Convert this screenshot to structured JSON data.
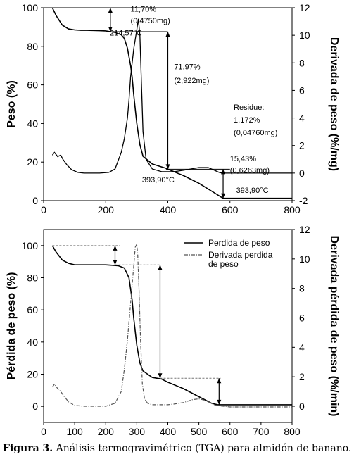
{
  "chart_data": [
    {
      "type": "line",
      "title": "",
      "ylabel": "Peso (%)",
      "y2label": "Derivada de peso (%/mg)",
      "xlim": [
        0,
        800
      ],
      "ylim": [
        0,
        100
      ],
      "y2lim": [
        -2,
        12
      ],
      "xticks": [
        "0",
        "200",
        "400",
        "600",
        "800"
      ],
      "yticks": [
        "0",
        "20",
        "40",
        "60",
        "80",
        "100"
      ],
      "y2ticks": [
        "-2",
        "0",
        "2",
        "4",
        "6",
        "8",
        "10",
        "12"
      ],
      "series": [
        {
          "axis": "left",
          "x": [
            28,
            40,
            60,
            80,
            100,
            120,
            140,
            160,
            180,
            200,
            215,
            230,
            250,
            260,
            270,
            280,
            285,
            290,
            300,
            310,
            320,
            350,
            380,
            393.9,
            400,
            450,
            500,
            550,
            575,
            580,
            600,
            700,
            800
          ],
          "y": [
            100,
            96,
            91,
            89,
            88.5,
            88.3,
            88.3,
            88.2,
            88.1,
            88.0,
            87.6,
            87.2,
            86,
            84,
            79,
            70,
            64,
            55,
            40,
            29,
            23,
            19,
            17.5,
            16.8,
            16.3,
            13,
            9,
            4,
            1.5,
            1.2,
            1.2,
            1.2,
            1.2
          ]
        },
        {
          "axis": "right",
          "x": [
            28,
            35,
            45,
            55,
            62,
            75,
            90,
            110,
            130,
            150,
            180,
            210,
            230,
            250,
            260,
            270,
            275,
            280,
            290,
            300,
            305,
            310,
            315,
            320,
            330,
            350,
            380,
            394,
            400,
            420,
            450,
            500,
            530,
            550,
            565,
            575,
            580,
            600,
            700,
            800
          ],
          "y": [
            1.3,
            1.5,
            1.2,
            1.3,
            1.0,
            0.6,
            0.25,
            0.05,
            0.0,
            0.0,
            0.0,
            0.05,
            0.3,
            1.5,
            2.5,
            4.0,
            5.3,
            7.0,
            9.0,
            10.4,
            11.2,
            10.0,
            6.5,
            3.0,
            1.0,
            0.3,
            0.1,
            0.1,
            0.1,
            0.1,
            0.2,
            0.4,
            0.4,
            0.2,
            0.05,
            0.0,
            0.0,
            0.0,
            0.0,
            0.0
          ]
        }
      ],
      "annotations": [
        {
          "text": "11,70%",
          "x": 280,
          "y": 98
        },
        {
          "text": "(0,4750mg)",
          "x": 280,
          "y": 92
        },
        {
          "text": "214,57°C",
          "x": 213,
          "y": 85.5
        },
        {
          "text": "71,97%",
          "x": 420,
          "y": 68
        },
        {
          "text": "(2,922mg)",
          "x": 420,
          "y": 61
        },
        {
          "text": "Residue:",
          "x": 612,
          "y": 47
        },
        {
          "text": "1,172%",
          "x": 612,
          "y": 40.5
        },
        {
          "text": "(0,04760mg)",
          "x": 612,
          "y": 34
        },
        {
          "text": "15,43%",
          "x": 600,
          "y": 20.5
        },
        {
          "text": "(0,6263mg)",
          "x": 600,
          "y": 14.5
        },
        {
          "text": "393,90°C",
          "x": 317,
          "y": 9.5
        },
        {
          "text": "393,90°C",
          "x": 620,
          "y": 4
        }
      ]
    },
    {
      "type": "line",
      "title": "",
      "ylabel": "Pérdida de peso (%)",
      "y2label": "Derivada pérdida de peso (%/min)",
      "xlim": [
        0,
        800
      ],
      "ylim": [
        -10,
        110
      ],
      "y2lim": [
        -1.1,
        12
      ],
      "xticks": [
        "0",
        "100",
        "200",
        "300",
        "400",
        "500",
        "600",
        "700",
        "800"
      ],
      "yticks": [
        "0",
        "20",
        "40",
        "60",
        "80",
        "100"
      ],
      "y2ticks": [
        "0",
        "2",
        "4",
        "6",
        "8",
        "10",
        "12"
      ],
      "legend_position": "top-right",
      "series": [
        {
          "name": "Perdida de peso",
          "axis": "left",
          "x": [
            28,
            40,
            60,
            80,
            100,
            150,
            200,
            240,
            260,
            275,
            285,
            290,
            300,
            310,
            320,
            350,
            380,
            400,
            450,
            500,
            540,
            560,
            600,
            800
          ],
          "y": [
            100,
            96,
            91,
            89,
            88,
            88,
            88,
            87.5,
            86,
            80,
            66,
            55,
            38,
            27,
            22,
            18,
            17,
            15,
            11,
            6,
            2,
            1,
            1,
            1
          ]
        },
        {
          "name": "Derivada perdida de peso",
          "axis": "right",
          "x": [
            28,
            35,
            45,
            55,
            65,
            80,
            100,
            130,
            160,
            200,
            230,
            250,
            260,
            270,
            280,
            290,
            295,
            300,
            303,
            307,
            312,
            318,
            325,
            335,
            350,
            380,
            400,
            420,
            450,
            480,
            500,
            520,
            540,
            555,
            600,
            800
          ],
          "y": [
            1.3,
            1.5,
            1.2,
            1.0,
            0.7,
            0.3,
            0.05,
            0.0,
            0.0,
            0.0,
            0.2,
            1.0,
            2.5,
            4.5,
            7.0,
            9.5,
            10.8,
            11.0,
            10.3,
            8.0,
            4.5,
            1.5,
            0.5,
            0.2,
            0.1,
            0.1,
            0.1,
            0.15,
            0.25,
            0.45,
            0.5,
            0.4,
            0.2,
            0.05,
            -0.05,
            -0.05
          ]
        }
      ]
    }
  ],
  "caption": {
    "label": "Figura 3.",
    "text": " Análisis termogravimétrico (TGA) para almidón de banano."
  }
}
